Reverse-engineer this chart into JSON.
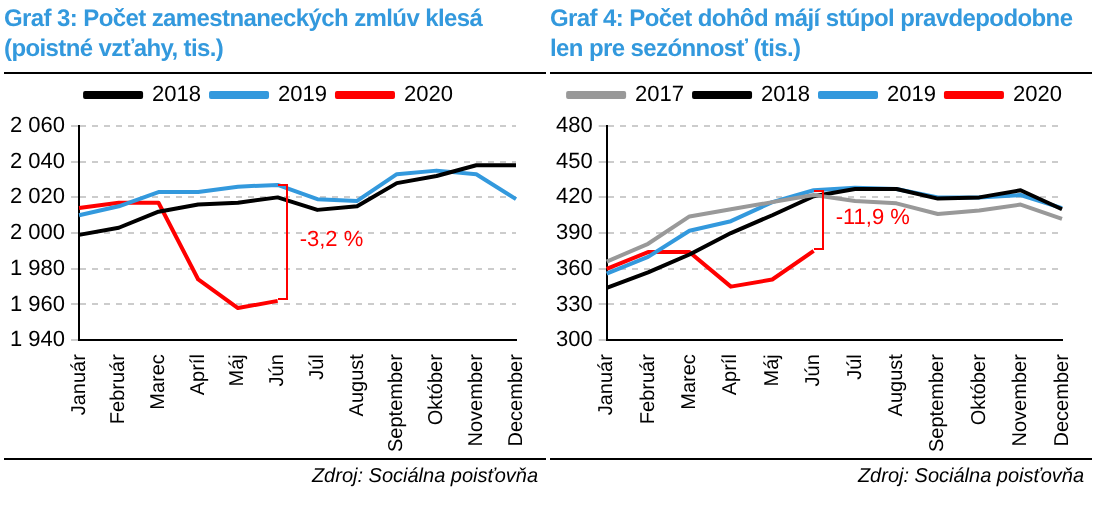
{
  "chart_data": [
    {
      "type": "line",
      "title": "Graf 3: Počet zamestnaneckých zmlúv klesá (poistné vzťahy, tis.)",
      "categories": [
        "Január",
        "Február",
        "Marec",
        "Apríl",
        "Máj",
        "Jún",
        "Júl",
        "August",
        "September",
        "Október",
        "November",
        "December"
      ],
      "series": [
        {
          "name": "2018",
          "color": "#000000",
          "values": [
            1999,
            2003,
            2012,
            2016,
            2017,
            2020,
            2013,
            2015,
            2028,
            2032,
            2038,
            2038
          ]
        },
        {
          "name": "2019",
          "color": "#3399dd",
          "values": [
            2010,
            2015,
            2023,
            2023,
            2026,
            2027,
            2019,
            2018,
            2033,
            2035,
            2033,
            2019
          ]
        },
        {
          "name": "2020",
          "color": "#ff0000",
          "values": [
            2014,
            2017,
            2017,
            1974,
            1958,
            1962,
            null,
            null,
            null,
            null,
            null,
            null
          ]
        }
      ],
      "ylim": [
        1940,
        2060
      ],
      "yticks": [
        {
          "value": 1940,
          "label": "1 940"
        },
        {
          "value": 1960,
          "label": "1 960"
        },
        {
          "value": 1980,
          "label": "1 980"
        },
        {
          "value": 2000,
          "label": "2 000"
        },
        {
          "value": 2020,
          "label": "2 020"
        },
        {
          "value": 2040,
          "label": "2 040"
        },
        {
          "value": 2060,
          "label": "2 060"
        }
      ],
      "grid": "y",
      "legend": "top",
      "marker": "none",
      "line_style": "solid",
      "annotations": [
        "-3,2 %",
        "Zdroj: Sociálna poisťovňa"
      ]
    },
    {
      "type": "line",
      "title": "Graf 4: Počet dohôd májí stúpol pravdepodobne len pre sezónnosť (tis.)",
      "categories": [
        "Január",
        "Február",
        "Marec",
        "Apríl",
        "Máj",
        "Jún",
        "Júl",
        "August",
        "September",
        "Október",
        "November",
        "December"
      ],
      "series": [
        {
          "name": "2017",
          "color": "#999999",
          "values": [
            366,
            381,
            404,
            410,
            416,
            422,
            417,
            415,
            406,
            409,
            414,
            402
          ]
        },
        {
          "name": "2018",
          "color": "#000000",
          "values": [
            344,
            357,
            372,
            390,
            405,
            421,
            427,
            427,
            419,
            420,
            426,
            410
          ]
        },
        {
          "name": "2019",
          "color": "#3399dd",
          "values": [
            356,
            370,
            392,
            400,
            416,
            426,
            428,
            427,
            420,
            420,
            422,
            411
          ]
        },
        {
          "name": "2020",
          "color": "#ff0000",
          "values": [
            360,
            374,
            374,
            345,
            351,
            375,
            null,
            null,
            null,
            null,
            null,
            null
          ]
        }
      ],
      "ylim": [
        300,
        480
      ],
      "yticks": [
        300,
        330,
        360,
        390,
        420,
        450,
        480
      ],
      "grid": "y",
      "legend": "top",
      "marker": "none",
      "line_style": "solid",
      "annotations": [
        "-11,9 %",
        "Zdroj: Sociálna poisťovňa"
      ]
    }
  ]
}
